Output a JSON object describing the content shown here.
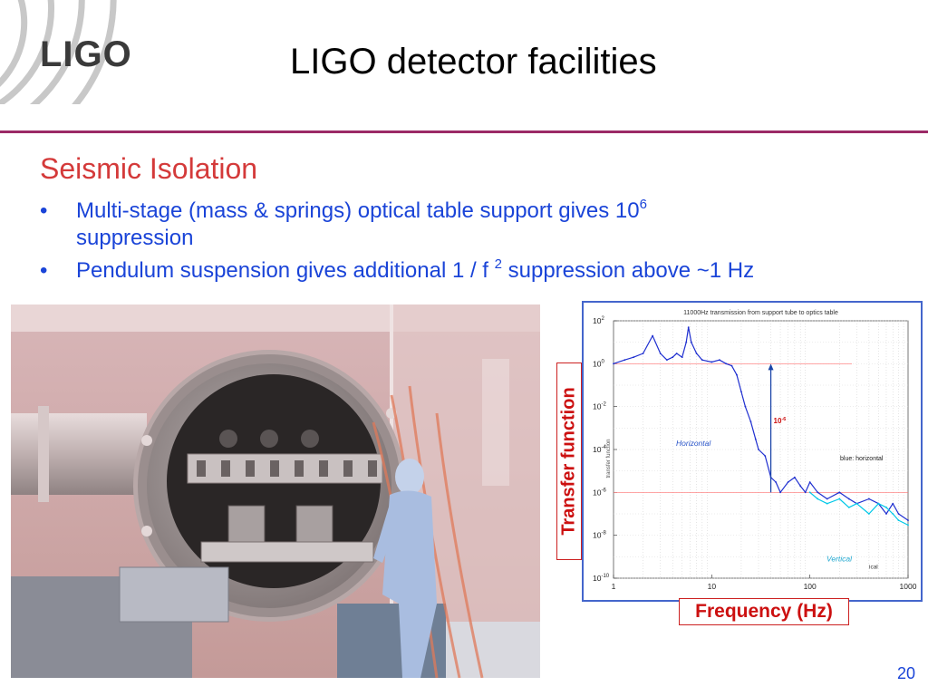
{
  "header": {
    "logo_text": "LIGO",
    "title": "LIGO detector facilities"
  },
  "section": {
    "heading": "Seismic Isolation"
  },
  "bullets": [
    {
      "pre": "Multi-stage (mass & springs) optical table support gives 10",
      "sup": "6",
      "post": " suppression"
    },
    {
      "pre": "Pendulum suspension gives additional 1 / f ",
      "sup": "2",
      "post": " suppression above ~1 Hz"
    }
  ],
  "figure": {
    "plot_title": "11000Hz transmission from support tube to optics table",
    "inner_ylabel": "transfer function",
    "ylabel": "Transfer function",
    "xlabel": "Frequency (Hz)",
    "annotation": "10-6",
    "annotation_base": "10",
    "annotation_exp": "-6",
    "legend_horizontal": "Horizontal",
    "legend_blue": "blue: horizontal",
    "legend_vertical": "Vertical",
    "legend_vertical_partial": "ical",
    "colors": {
      "horizontal": "#1f2fd0",
      "vertical": "#00c8e8",
      "reference": "#ff7070",
      "arrow": "#1a44a8"
    }
  },
  "chart_data": {
    "type": "line",
    "title": "11000Hz transmission from support tube to optics table",
    "xlabel": "Frequency (Hz)",
    "ylabel": "Transfer function",
    "xscale": "log",
    "yscale": "log",
    "xlim": [
      1,
      1000
    ],
    "ylim": [
      1e-10,
      100
    ],
    "x_ticks": [
      "1",
      "10",
      "100",
      "1000"
    ],
    "y_ticks": [
      {
        "base": "10",
        "exp": "2"
      },
      {
        "base": "10",
        "exp": "0"
      },
      {
        "base": "10",
        "exp": "-2"
      },
      {
        "base": "10",
        "exp": "-4"
      },
      {
        "base": "10",
        "exp": "-6"
      },
      {
        "base": "10",
        "exp": "-8"
      },
      {
        "base": "10",
        "exp": "-10"
      }
    ],
    "grid": true,
    "reference_lines": [
      1,
      1e-06
    ],
    "series": [
      {
        "name": "Horizontal",
        "x": [
          1.0,
          1.3,
          1.6,
          2.0,
          2.5,
          3.0,
          3.5,
          4.0,
          4.4,
          5.0,
          5.5,
          5.8,
          6.2,
          7.0,
          8.0,
          10.0,
          12.0,
          14.0,
          16.0,
          18.0,
          20.0,
          22.0,
          25.0,
          28.0,
          30.0,
          35.0,
          40.0,
          45.0,
          50.0,
          60.0,
          70.0,
          80.0,
          90.0,
          100.0,
          120.0,
          150.0,
          200.0,
          250.0,
          300.0,
          400.0,
          500.0,
          600.0,
          700.0,
          800.0,
          1000.0
        ],
        "y": [
          1.0,
          1.5,
          2.0,
          3.0,
          20.0,
          3.0,
          1.5,
          2.0,
          3.0,
          2.0,
          10.0,
          50.0,
          10.0,
          3.0,
          1.5,
          1.2,
          1.5,
          1.0,
          0.8,
          0.3,
          0.05,
          0.01,
          0.002,
          0.0003,
          0.0001,
          5e-05,
          5e-06,
          3e-06,
          1e-06,
          3e-06,
          5e-06,
          2e-06,
          1e-06,
          3e-06,
          1e-06,
          5e-07,
          1e-06,
          5e-07,
          3e-07,
          5e-07,
          3e-07,
          1e-07,
          3e-07,
          1e-07,
          5e-08
        ]
      },
      {
        "name": "Vertical",
        "x": [
          100.0,
          120.0,
          150.0,
          200.0,
          250.0,
          300.0,
          400.0,
          500.0,
          600.0,
          700.0,
          800.0,
          1000.0
        ],
        "y": [
          1e-06,
          5e-07,
          3e-07,
          5e-07,
          2e-07,
          3e-07,
          1e-07,
          3e-07,
          2e-07,
          1e-07,
          5e-08,
          3e-08
        ]
      }
    ]
  },
  "page_number": "20"
}
